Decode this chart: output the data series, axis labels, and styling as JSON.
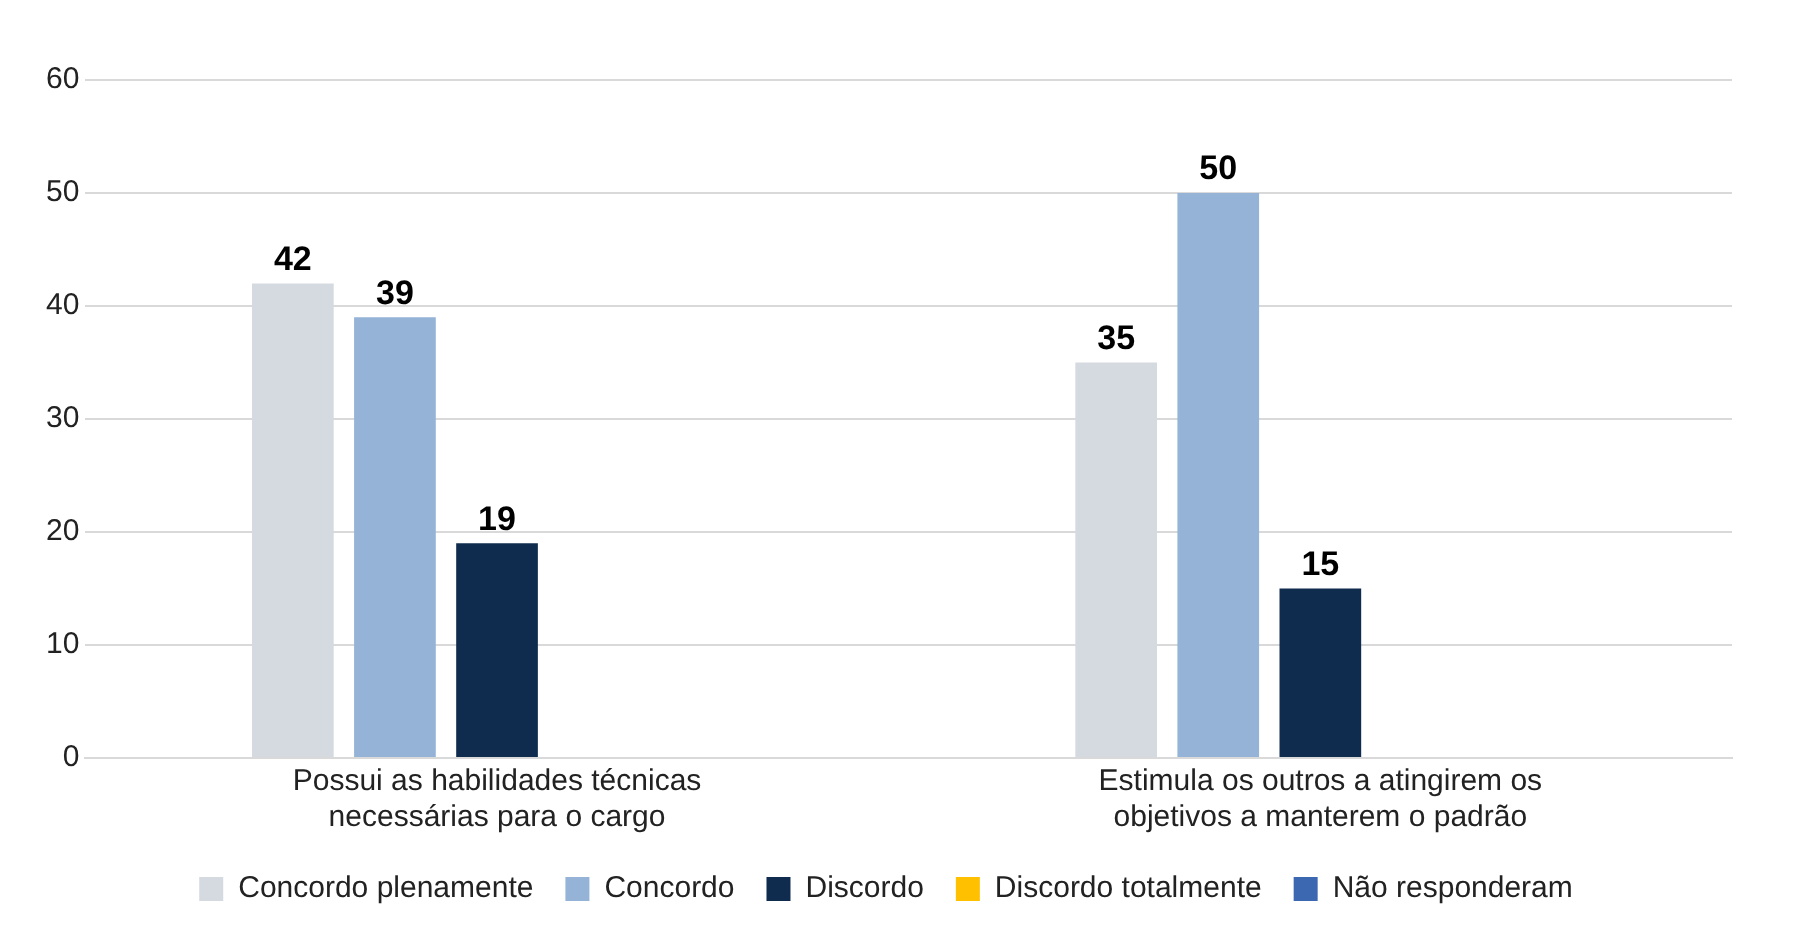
{
  "chart_data": {
    "type": "bar",
    "categories": [
      "Possui as habilidades técnicas necessárias para o cargo",
      "Estimula os outros a atingirem os objetivos a manterem o padrão"
    ],
    "series": [
      {
        "name": "Concordo plenamente",
        "color": "#d5d9e0",
        "values": [
          42,
          35
        ]
      },
      {
        "name": "Concordo",
        "color": "#94b3d6",
        "values": [
          39,
          50
        ]
      },
      {
        "name": "Discordo",
        "color": "#0f2b4d",
        "values": [
          19,
          15
        ]
      },
      {
        "name": "Discordo totalmente",
        "color": "#ffc000",
        "values": [
          null,
          null
        ]
      },
      {
        "name": "Não responderam",
        "color": "#3c68b1",
        "values": [
          null,
          null
        ]
      }
    ],
    "ylim": [
      0,
      60
    ],
    "yticks": [
      0,
      10,
      20,
      30,
      40,
      50,
      60
    ],
    "grid": "y",
    "legend": "bottom",
    "data_labels": true
  }
}
